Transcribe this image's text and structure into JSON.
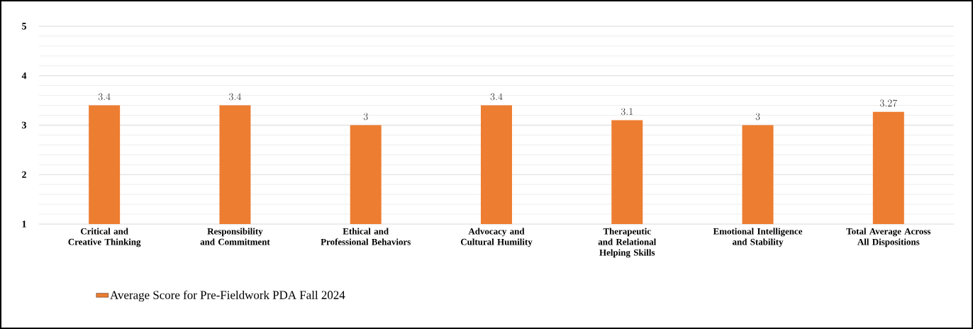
{
  "chart_data": {
    "type": "bar",
    "categories": [
      "Critical and Creative Thinking",
      "Responsibility and Commitment",
      "Ethical and Professional Behaviors",
      "Advocacy and Cultural Humility",
      "Therapeutic and Relational Helping Skills",
      "Emotional Intelligence and Stability",
      "Total Average Across All Dispositions"
    ],
    "series": [
      {
        "name": "Average Score for Pre-Fieldwork PDA Fall 2024",
        "color": "#ed7d31",
        "values": [
          3.4,
          3.4,
          3,
          3.4,
          3.1,
          3,
          3.27
        ]
      }
    ],
    "ylim": [
      1,
      5
    ],
    "yticks": [
      1,
      2,
      3,
      4,
      5
    ],
    "grid": "y",
    "legend": "bottom left",
    "data_labels": true
  }
}
